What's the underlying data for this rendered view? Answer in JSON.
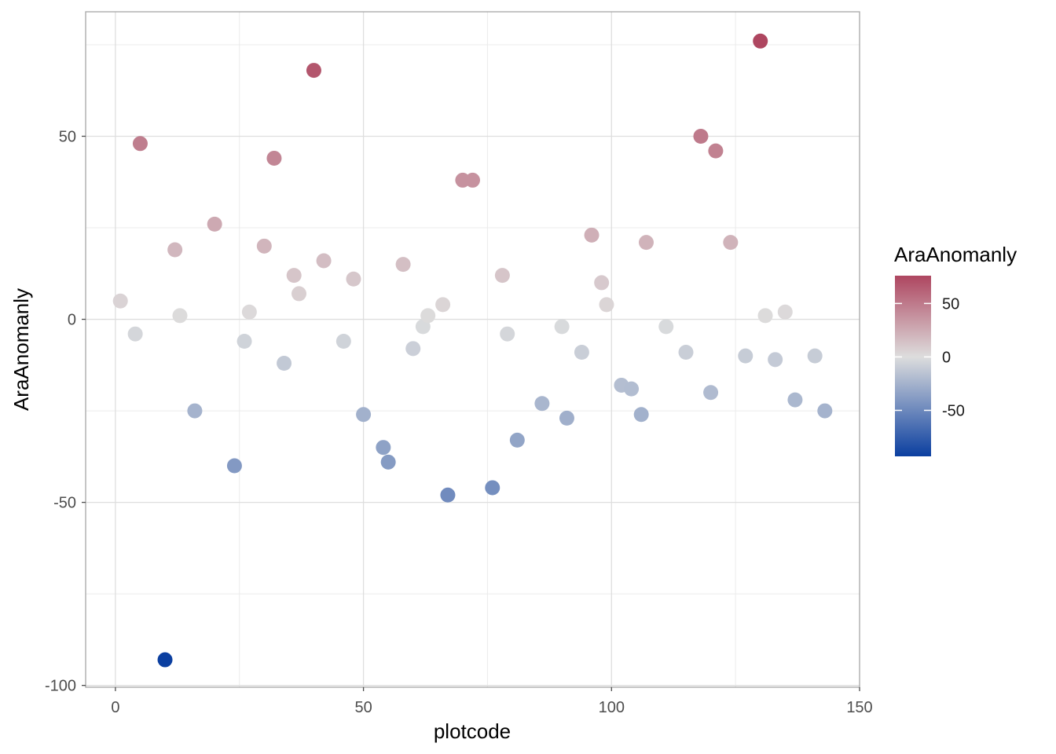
{
  "chart_data": {
    "type": "scatter",
    "title": "",
    "xlabel": "plotcode",
    "ylabel": "AraAnomanly",
    "xlim": [
      -6,
      150
    ],
    "ylim": [
      -100.5,
      84
    ],
    "x_ticks": [
      0,
      50,
      100,
      150
    ],
    "x_tick_labels": [
      "0",
      "50",
      "100",
      "150"
    ],
    "y_ticks": [
      -100,
      -50,
      0,
      50
    ],
    "y_tick_labels": [
      "-100",
      "-50",
      "0",
      "50"
    ],
    "grid": true,
    "legend": {
      "title": "AraAnomanly",
      "position": "right",
      "type": "colorbar",
      "range": [
        -93,
        76
      ],
      "breaks": [
        50,
        0,
        -50
      ],
      "break_labels": [
        "50",
        "0",
        "-50"
      ],
      "low_color": "#0B3FA0",
      "mid_color": "#DDDDDD",
      "high_color": "#AE4660"
    },
    "x": [
      1,
      4,
      5,
      10,
      12,
      13,
      16,
      20,
      24,
      26,
      27,
      30,
      32,
      34,
      36,
      37,
      40,
      42,
      46,
      48,
      50,
      54,
      55,
      58,
      60,
      62,
      63,
      66,
      67,
      70,
      72,
      76,
      78,
      79,
      81,
      86,
      90,
      91,
      94,
      96,
      98,
      99,
      102,
      104,
      106,
      107,
      111,
      115,
      118,
      120,
      121,
      124,
      127,
      130,
      131,
      133,
      135,
      137,
      141,
      143
    ],
    "y": [
      5,
      -4,
      48,
      -93,
      19,
      1,
      -25,
      26,
      -40,
      -6,
      2,
      20,
      44,
      -12,
      12,
      7,
      68,
      16,
      -6,
      11,
      -26,
      -35,
      -39,
      15,
      -8,
      -2,
      1,
      4,
      -48,
      38,
      38,
      -46,
      12,
      -4,
      -33,
      -23,
      -2,
      -27,
      -9,
      23,
      10,
      4,
      -18,
      -19,
      -26,
      21,
      -2,
      -9,
      50,
      -20,
      46,
      21,
      -10,
      76,
      1,
      -11,
      2,
      -22,
      -10,
      -25
    ]
  }
}
